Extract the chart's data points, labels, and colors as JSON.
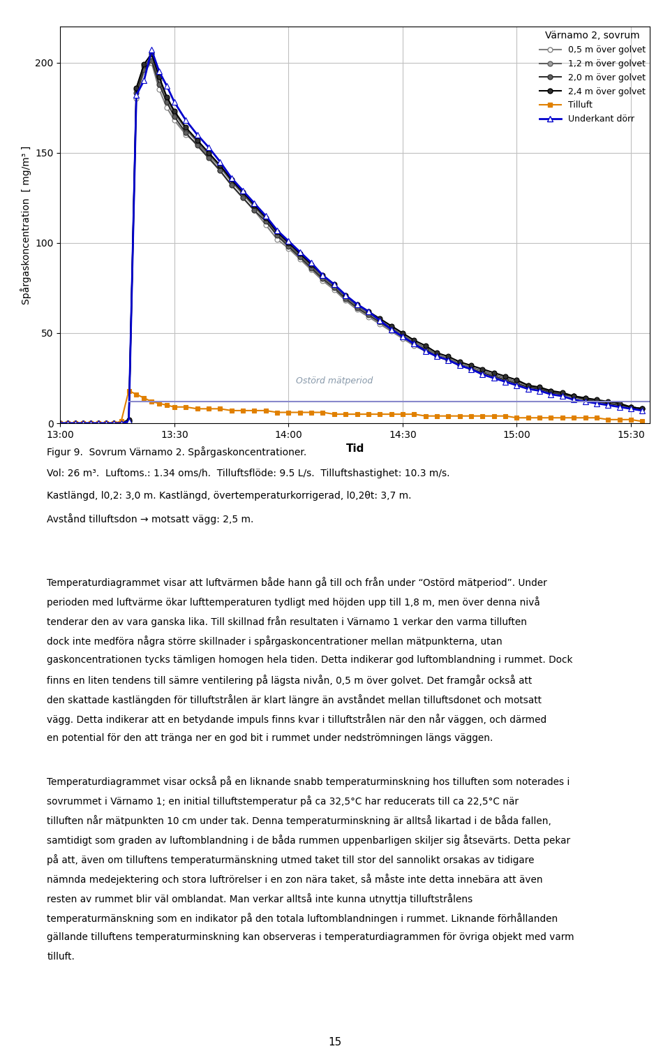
{
  "title": "Värnamo 2, sovrum",
  "ylabel": "Spårgaskoncentration  [ mg/m³ ]",
  "xlabel": "Tid",
  "ylim": [
    0,
    220
  ],
  "yticks": [
    0,
    50,
    100,
    150,
    200
  ],
  "xlim_min": 0,
  "xlim_max": 155,
  "xtick_labels": [
    "13:00",
    "13:30",
    "14:00",
    "14:30",
    "15:00",
    "15:30"
  ],
  "xtick_positions": [
    0,
    30,
    60,
    90,
    120,
    150
  ],
  "ostord_label": "Ostörd mätperiod",
  "ostord_x": 62,
  "ostord_y": 22,
  "background_color": "#ffffff",
  "grid_color": "#c0c0c0",
  "series": {
    "s05": {
      "label": "0,5 m över golvet",
      "color": "#808080",
      "marker": "o",
      "markerfacecolor": "white",
      "linewidth": 1.5,
      "markersize": 5,
      "times": [
        0,
        2,
        4,
        6,
        8,
        10,
        12,
        14,
        16,
        18,
        20,
        22,
        24,
        26,
        28,
        30,
        33,
        36,
        39,
        42,
        45,
        48,
        51,
        54,
        57,
        60,
        63,
        66,
        69,
        72,
        75,
        78,
        81,
        84,
        87,
        90,
        93,
        96,
        99,
        102,
        105,
        108,
        111,
        114,
        117,
        120,
        123,
        126,
        129,
        132,
        135,
        138,
        141,
        144,
        147,
        150,
        153
      ],
      "values": [
        0,
        0,
        0,
        0,
        0,
        0,
        0,
        0,
        0,
        1,
        180,
        195,
        200,
        185,
        175,
        168,
        160,
        155,
        148,
        140,
        132,
        125,
        118,
        110,
        102,
        97,
        91,
        85,
        79,
        74,
        68,
        63,
        59,
        55,
        51,
        47,
        43,
        40,
        37,
        35,
        32,
        30,
        28,
        26,
        24,
        22,
        20,
        19,
        17,
        16,
        14,
        13,
        12,
        11,
        10,
        9,
        8
      ]
    },
    "s12": {
      "label": "1,2 m över golvet",
      "color": "#606060",
      "marker": "o",
      "markerfacecolor": "#a0a0a0",
      "linewidth": 1.5,
      "markersize": 5,
      "times": [
        0,
        2,
        4,
        6,
        8,
        10,
        12,
        14,
        16,
        18,
        20,
        22,
        24,
        26,
        28,
        30,
        33,
        36,
        39,
        42,
        45,
        48,
        51,
        54,
        57,
        60,
        63,
        66,
        69,
        72,
        75,
        78,
        81,
        84,
        87,
        90,
        93,
        96,
        99,
        102,
        105,
        108,
        111,
        114,
        117,
        120,
        123,
        126,
        129,
        132,
        135,
        138,
        141,
        144,
        147,
        150,
        153
      ],
      "values": [
        0,
        0,
        0,
        0,
        0,
        0,
        0,
        0,
        0,
        1,
        185,
        198,
        203,
        190,
        180,
        172,
        163,
        156,
        149,
        142,
        134,
        127,
        120,
        113,
        105,
        99,
        93,
        87,
        81,
        76,
        70,
        65,
        61,
        57,
        53,
        49,
        45,
        42,
        38,
        36,
        33,
        31,
        29,
        27,
        25,
        23,
        21,
        19,
        18,
        16,
        15,
        14,
        12,
        11,
        10,
        9,
        8
      ]
    },
    "s20": {
      "label": "2,0 m över golvet",
      "color": "#303030",
      "marker": "o",
      "markerfacecolor": "#606060",
      "linewidth": 1.5,
      "markersize": 5,
      "times": [
        0,
        2,
        4,
        6,
        8,
        10,
        12,
        14,
        16,
        18,
        20,
        22,
        24,
        26,
        28,
        30,
        33,
        36,
        39,
        42,
        45,
        48,
        51,
        54,
        57,
        60,
        63,
        66,
        69,
        72,
        75,
        78,
        81,
        84,
        87,
        90,
        93,
        96,
        99,
        102,
        105,
        108,
        111,
        114,
        117,
        120,
        123,
        126,
        129,
        132,
        135,
        138,
        141,
        144,
        147,
        150,
        153
      ],
      "values": [
        0,
        0,
        0,
        0,
        0,
        0,
        0,
        0,
        0,
        1,
        183,
        196,
        201,
        188,
        178,
        170,
        161,
        154,
        147,
        140,
        132,
        125,
        118,
        112,
        104,
        98,
        92,
        86,
        80,
        75,
        69,
        64,
        60,
        56,
        52,
        48,
        44,
        41,
        37,
        35,
        32,
        30,
        28,
        26,
        24,
        22,
        20,
        19,
        17,
        16,
        15,
        13,
        12,
        11,
        10,
        9,
        8
      ]
    },
    "s24": {
      "label": "2,4 m över golvet",
      "color": "#000000",
      "marker": "o",
      "markerfacecolor": "#303030",
      "linewidth": 1.5,
      "markersize": 5,
      "times": [
        0,
        2,
        4,
        6,
        8,
        10,
        12,
        14,
        16,
        18,
        20,
        22,
        24,
        26,
        28,
        30,
        33,
        36,
        39,
        42,
        45,
        48,
        51,
        54,
        57,
        60,
        63,
        66,
        69,
        72,
        75,
        78,
        81,
        84,
        87,
        90,
        93,
        96,
        99,
        102,
        105,
        108,
        111,
        114,
        117,
        120,
        123,
        126,
        129,
        132,
        135,
        138,
        141,
        144,
        147,
        150,
        153
      ],
      "values": [
        0,
        0,
        0,
        0,
        0,
        0,
        0,
        0,
        0,
        2,
        186,
        199,
        205,
        192,
        181,
        173,
        164,
        157,
        150,
        143,
        135,
        128,
        121,
        114,
        106,
        100,
        94,
        88,
        82,
        77,
        71,
        66,
        62,
        58,
        54,
        50,
        46,
        43,
        39,
        37,
        34,
        32,
        30,
        28,
        26,
        24,
        21,
        20,
        18,
        17,
        15,
        14,
        13,
        12,
        11,
        9,
        8
      ]
    },
    "tilluft": {
      "label": "Tilluft",
      "color": "#e08000",
      "marker": "s",
      "markerfacecolor": "#e08000",
      "linewidth": 1.5,
      "markersize": 5,
      "times": [
        0,
        2,
        4,
        6,
        8,
        10,
        12,
        14,
        16,
        18,
        20,
        22,
        24,
        26,
        28,
        30,
        33,
        36,
        39,
        42,
        45,
        48,
        51,
        54,
        57,
        60,
        63,
        66,
        69,
        72,
        75,
        78,
        81,
        84,
        87,
        90,
        93,
        96,
        99,
        102,
        105,
        108,
        111,
        114,
        117,
        120,
        123,
        126,
        129,
        132,
        135,
        138,
        141,
        144,
        147,
        150,
        153
      ],
      "values": [
        0,
        0,
        0,
        0,
        0,
        0,
        0,
        0,
        1,
        18,
        16,
        14,
        12,
        11,
        10,
        9,
        9,
        8,
        8,
        8,
        7,
        7,
        7,
        7,
        6,
        6,
        6,
        6,
        6,
        5,
        5,
        5,
        5,
        5,
        5,
        5,
        5,
        4,
        4,
        4,
        4,
        4,
        4,
        4,
        4,
        3,
        3,
        3,
        3,
        3,
        3,
        3,
        3,
        2,
        2,
        2,
        1
      ]
    },
    "underkant": {
      "label": "Underkant dörr",
      "color": "#0000cc",
      "marker": "^",
      "markerfacecolor": "white",
      "linewidth": 2.0,
      "markersize": 6,
      "times": [
        0,
        2,
        4,
        6,
        8,
        10,
        12,
        14,
        16,
        18,
        20,
        22,
        24,
        26,
        28,
        30,
        33,
        36,
        39,
        42,
        45,
        48,
        51,
        54,
        57,
        60,
        63,
        66,
        69,
        72,
        75,
        78,
        81,
        84,
        87,
        90,
        93,
        96,
        99,
        102,
        105,
        108,
        111,
        114,
        117,
        120,
        123,
        126,
        129,
        132,
        135,
        138,
        141,
        144,
        147,
        150,
        153
      ],
      "values": [
        0,
        0,
        0,
        0,
        0,
        0,
        0,
        0,
        0,
        1,
        182,
        190,
        207,
        195,
        187,
        178,
        168,
        160,
        153,
        145,
        136,
        129,
        122,
        115,
        107,
        101,
        95,
        89,
        82,
        77,
        71,
        66,
        62,
        57,
        52,
        48,
        44,
        40,
        37,
        35,
        32,
        30,
        27,
        25,
        23,
        21,
        19,
        18,
        16,
        15,
        13,
        12,
        11,
        10,
        9,
        8,
        7
      ]
    }
  },
  "ostord_line_x": [
    18,
    155
  ],
  "ostord_line_y": [
    12,
    12
  ],
  "caption_line1": "Figur 9.  Sovrum Värnamo 2. Spårgaskoncentrationer.",
  "caption_line2": "Vol: 26 m³.  Luftoms.: 1.34 oms/h.  Tilluftsflöde: 9.5 L/s.  Tilluftshastighet: 10.3 m/s.",
  "caption_line3": "Kastlängd, l0,2: 3,0 m. Kastlängd, övertemperaturkorrigerad, l0,2θt: 3,7 m.",
  "caption_line4": "Avstånd tilluftsdon → motsatt vägg: 2,5 m.",
  "para1": "Temperaturdiagrammet visar att luftvärmen både hann gå till och från under “Ostörd mätperiod”. Under perioden med luftvärme ökar lufttemperaturen tydligt med höjden upp till 1,8 m, men över denna nivå tenderar den av vara ganska lika. Till skillnad från resultaten i Värnamo 1 verkar den varma tilluften dock inte medföra några större skillnader i spårgaskoncentrationer mellan mätpunkterna, utan gaskoncentrationen tycks tämligen homogen hela tiden. Detta indikerar god luftomblandning i rummet. Dock finns en liten tendens till sämre ventilering på lägsta nivån, 0,5 m över golvet. Det framgår också att den skattade kastlängden för tilluftstrålen är klart längre än avståndet mellan tilluftsdonet och motsatt vägg. Detta indikerar att en betydande impuls finns kvar i tilluftstrålen när den når väggen, och därmed en potential för den att tränga ner en god bit i rummet under nedströmningen längs väggen.",
  "para2": "Temperaturdiagrammet visar också på en liknande snabb temperaturminskning hos tilluften som noterades i sovrummet i Värnamo 1; en initial tilluftstemperatur på ca 32,5°C har reducerats till ca 22,5°C när tilluften når mätpunkten 10 cm under tak. Denna temperaturminskning är alltså likartad i de båda fallen, samtidigt som graden av luftomblandning i de båda rummen uppenbarligen skiljer sig åtsevärts. Detta pekar på att, även om tilluftens temperaturmänskning utmed taket till stor del sannolikt orsakas av tidigare nämnda medejektering och stora luftrörelser i en zon nära taket, så måste inte detta innebära att även resten av rummet blir väl omblandat. Man verkar alltså inte kunna utnyttja tilluftstrålens temperaturmänskning som en indikator på den totala luftomblandningen i rummet. Liknande förhållanden gällande tilluftens temperaturminskning kan observeras i temperaturdiagrammen för övriga objekt med varm tilluft.",
  "page_number": "15"
}
